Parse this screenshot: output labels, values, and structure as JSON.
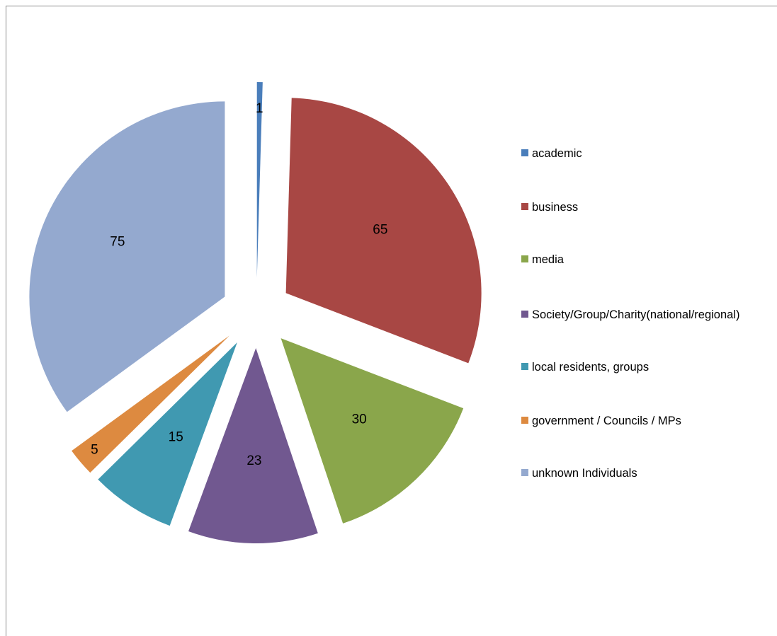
{
  "chart_data": {
    "type": "pie",
    "title": "",
    "categories": [
      "academic",
      "business",
      "media",
      "Society/Group/Charity(national/regional)",
      "local residents, groups",
      "government / Councils / MPs",
      "unknown Individuals"
    ],
    "values": [
      1,
      65,
      30,
      23,
      15,
      5,
      75
    ],
    "data_labels": [
      "1",
      "65",
      "30",
      "23",
      "15",
      "5",
      "75"
    ],
    "colors": [
      "#4a7ebb",
      "#a84744",
      "#8aa64b",
      "#715890",
      "#4099b1",
      "#dd8a40",
      "#94a9cf"
    ],
    "exploded": true,
    "start_angle": "top",
    "direction": "clockwise",
    "legend_position": "right"
  },
  "legend": {
    "items": [
      {
        "label": "academic",
        "color": "#4a7ebb"
      },
      {
        "label": "business",
        "color": "#a84744"
      },
      {
        "label": "media",
        "color": "#8aa64b"
      },
      {
        "label": "Society/Group/Charity(national/regional)",
        "color": "#715890"
      },
      {
        "label": "local residents, groups",
        "color": "#4099b1"
      },
      {
        "label": "government / Councils / MPs",
        "color": "#dd8a40"
      },
      {
        "label": "unknown Individuals",
        "color": "#94a9cf"
      }
    ]
  }
}
